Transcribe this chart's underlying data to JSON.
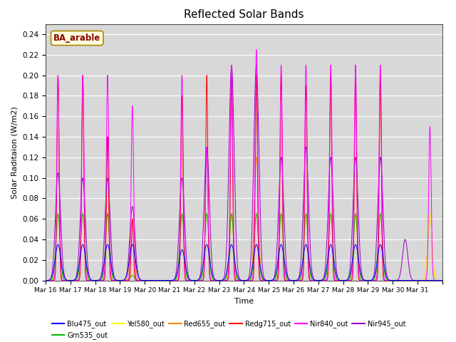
{
  "title": "Reflected Solar Bands",
  "xlabel": "Time",
  "ylabel": "Solar Raditaion (W/m2)",
  "annotation": "BA_arable",
  "ylim": [
    0.0,
    0.25
  ],
  "yticks": [
    0.0,
    0.02,
    0.04,
    0.06,
    0.08,
    0.1,
    0.12,
    0.14,
    0.16,
    0.18,
    0.2,
    0.22,
    0.24
  ],
  "series": [
    {
      "name": "Blu475_out",
      "color": "#0000ff"
    },
    {
      "name": "Grn535_out",
      "color": "#00bb00"
    },
    {
      "name": "Yel580_out",
      "color": "#ffff00"
    },
    {
      "name": "Red655_out",
      "color": "#ff8800"
    },
    {
      "name": "Redg715_out",
      "color": "#ff0000"
    },
    {
      "name": "Nir840_out",
      "color": "#ff00ff"
    },
    {
      "name": "Nir945_out",
      "color": "#9900cc"
    }
  ],
  "background_color": "#d8d8d8",
  "title_fontsize": 11,
  "n_days": 16,
  "start_day": 16,
  "points_per_day": 288,
  "peak_hour": 12.0,
  "day_peaks": {
    "nir840": [
      0.2,
      0.2,
      0.2,
      0.17,
      0.0,
      0.2,
      0.13,
      0.21,
      0.225,
      0.21,
      0.21,
      0.21,
      0.21,
      0.21,
      0.0,
      0.15
    ],
    "nir945": [
      0.105,
      0.1,
      0.1,
      0.072,
      0.0,
      0.1,
      0.13,
      0.21,
      0.21,
      0.12,
      0.13,
      0.12,
      0.12,
      0.12,
      0.04,
      0.0
    ],
    "redg715": [
      0.2,
      0.2,
      0.14,
      0.06,
      0.0,
      0.18,
      0.2,
      0.2,
      0.2,
      0.2,
      0.19,
      0.2,
      0.2,
      0.2,
      0.0,
      0.0
    ],
    "red655": [
      0.065,
      0.065,
      0.065,
      0.06,
      0.0,
      0.065,
      0.065,
      0.065,
      0.12,
      0.065,
      0.065,
      0.065,
      0.065,
      0.065,
      0.0,
      0.065
    ],
    "yel580": [
      0.065,
      0.065,
      0.065,
      0.005,
      0.0,
      0.065,
      0.065,
      0.065,
      0.065,
      0.065,
      0.065,
      0.065,
      0.065,
      0.065,
      0.0,
      0.065
    ],
    "grn535": [
      0.065,
      0.065,
      0.065,
      0.005,
      0.0,
      0.065,
      0.065,
      0.065,
      0.065,
      0.065,
      0.065,
      0.065,
      0.065,
      0.065,
      0.0,
      0.0
    ],
    "blu475": [
      0.035,
      0.035,
      0.035,
      0.035,
      0.0,
      0.03,
      0.035,
      0.035,
      0.035,
      0.035,
      0.035,
      0.035,
      0.035,
      0.035,
      0.0,
      0.0
    ]
  },
  "peak_width_hours": {
    "nir840": 1.2,
    "nir945": 2.5,
    "redg715": 1.0,
    "red655": 2.0,
    "yel580": 2.0,
    "grn535": 2.0,
    "blu475": 2.8
  }
}
